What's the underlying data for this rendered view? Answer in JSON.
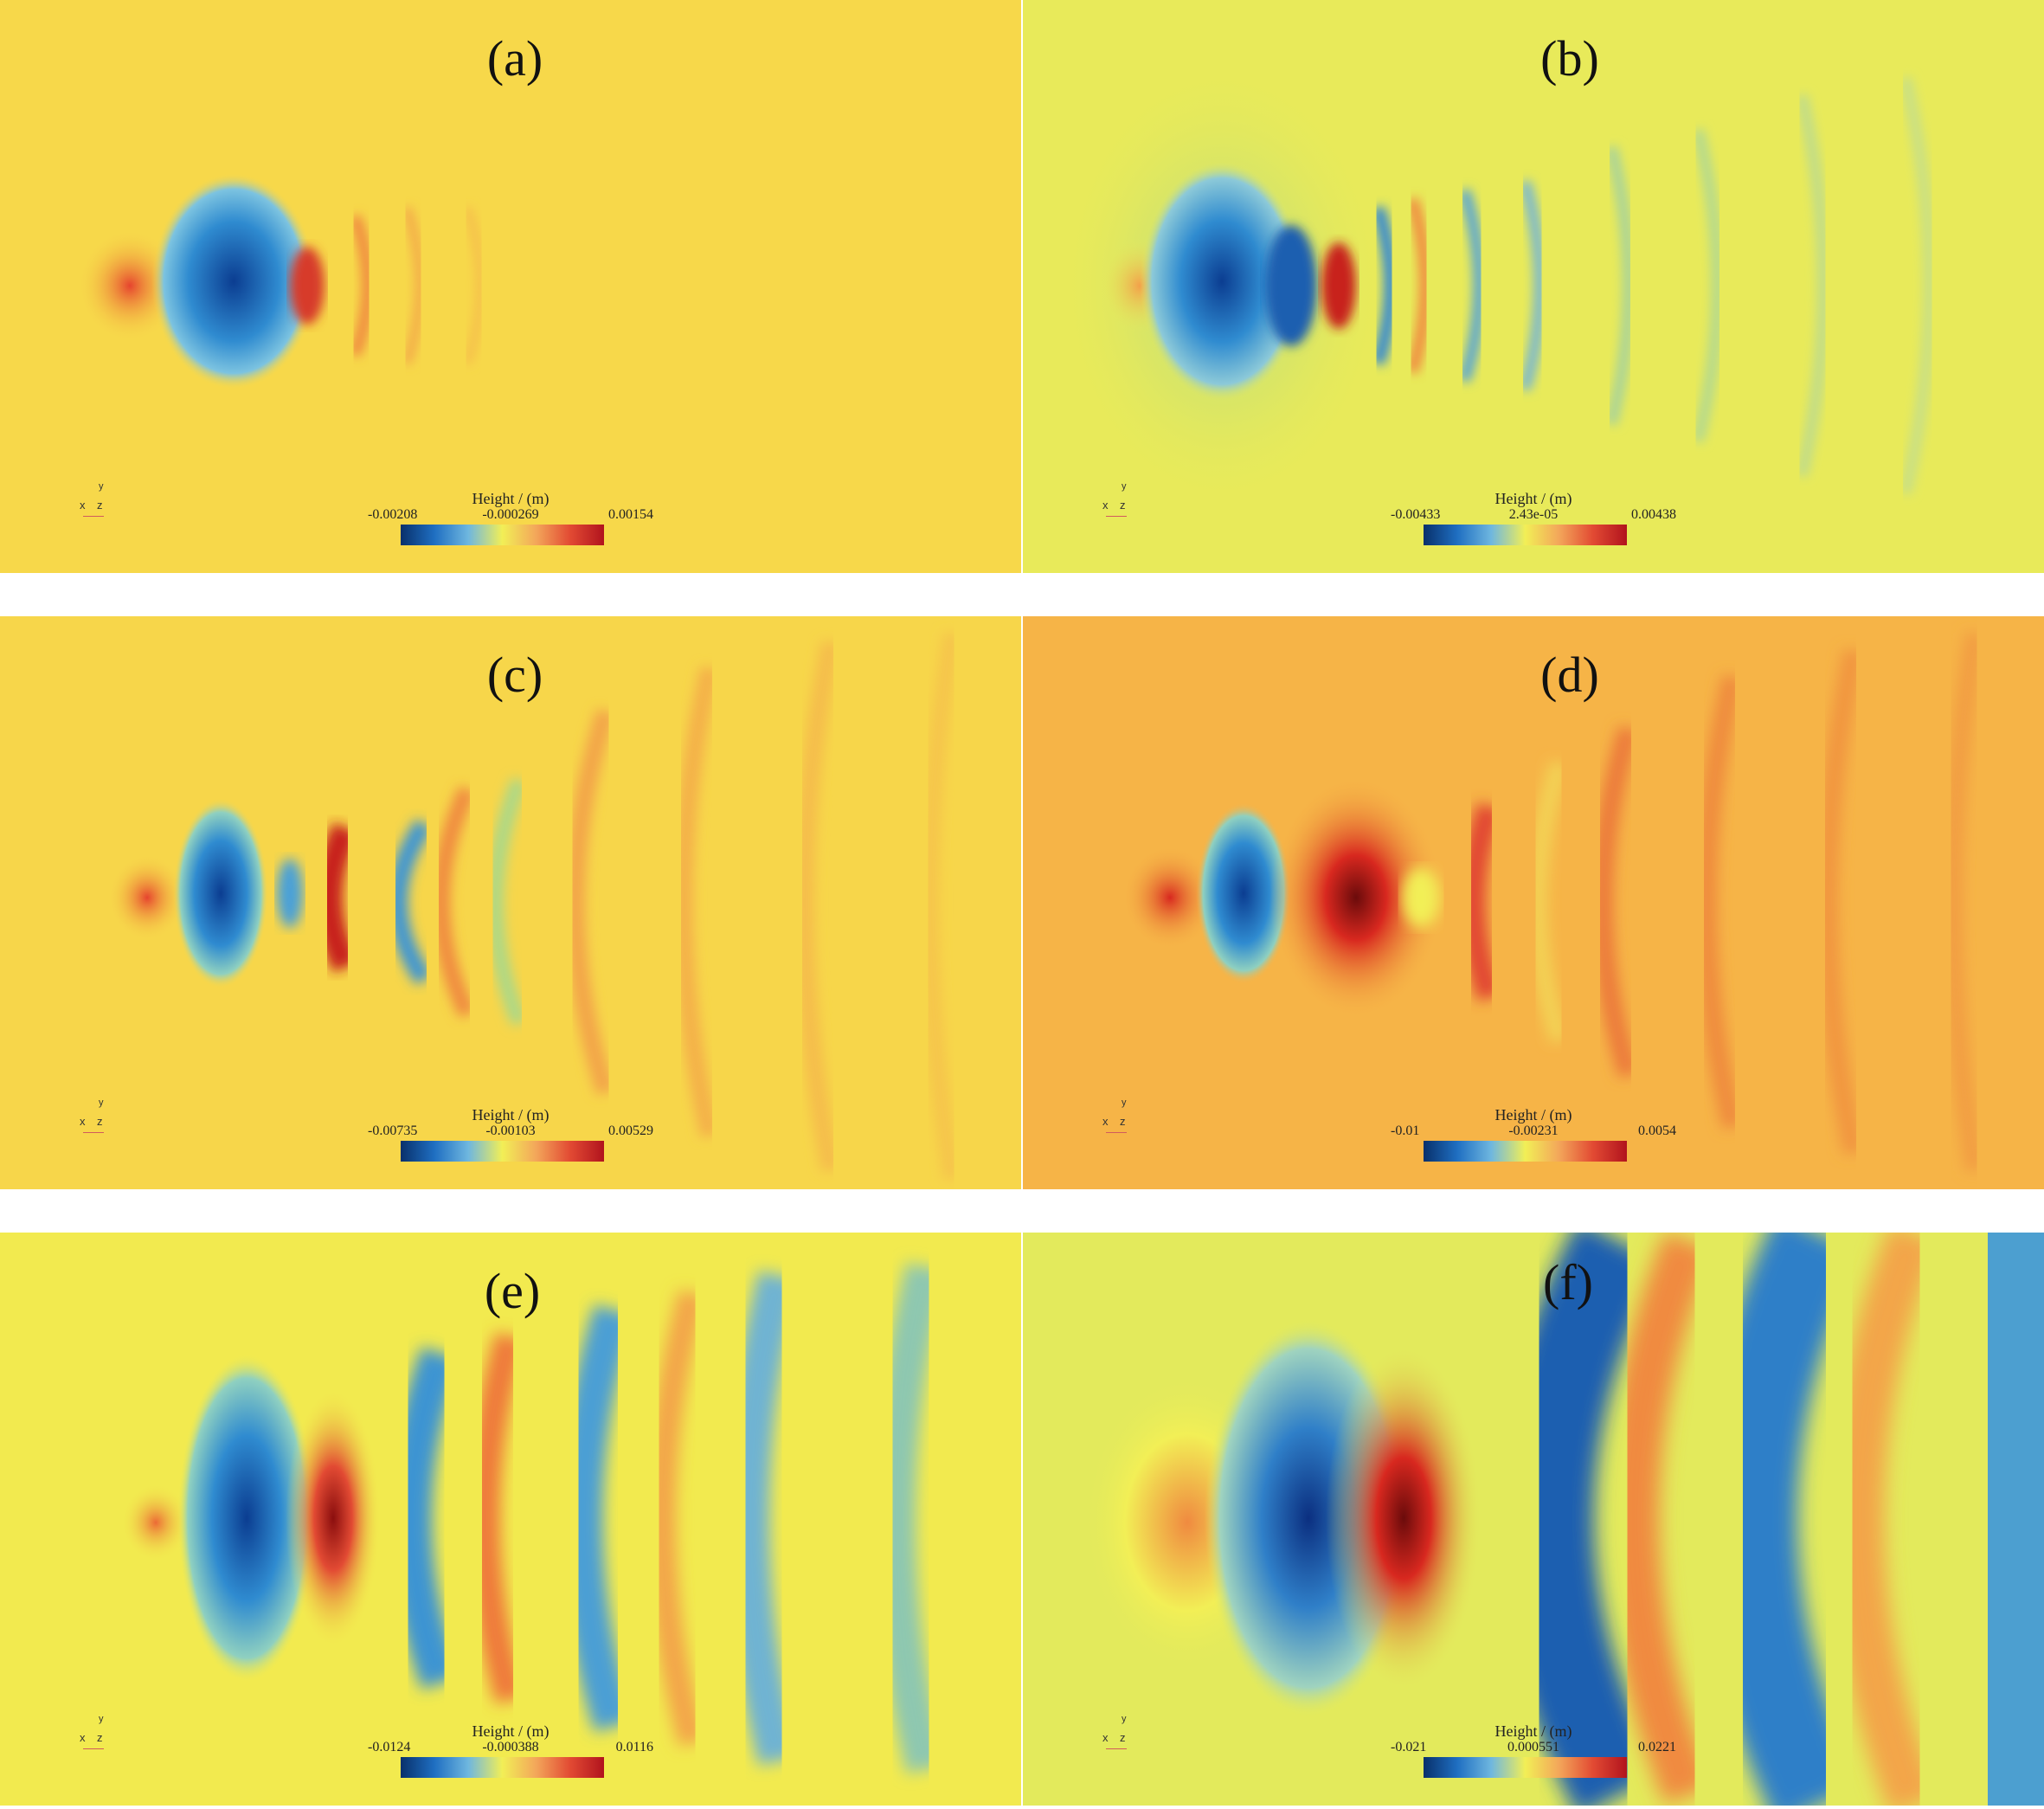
{
  "legend_title": "Height / (m)",
  "axis_labels": {
    "x": "x",
    "y": "y",
    "z": "z"
  },
  "panels": [
    {
      "label": "(a)",
      "min": "-0.00208",
      "mid": "-0.000269",
      "max": "0.00154",
      "background": "#f7d84a"
    },
    {
      "label": "(b)",
      "min": "-0.00433",
      "mid": "2.43e-05",
      "max": "0.00438",
      "background": "#e8ea5a"
    },
    {
      "label": "(c)",
      "min": "-0.00735",
      "mid": "-0.00103",
      "max": "0.00529",
      "background": "#f7d64a"
    },
    {
      "label": "(d)",
      "min": "-0.01",
      "mid": "-0.00231",
      "max": "0.0054",
      "background": "#f6b447"
    },
    {
      "label": "(e)",
      "min": "-0.0124",
      "mid": "-0.000388",
      "max": "0.0116",
      "background": "#f2ea4f"
    },
    {
      "label": "(f)",
      "min": "-0.021",
      "mid": "0.000551",
      "max": "0.0221",
      "background": "#e3ea5c"
    }
  ]
}
